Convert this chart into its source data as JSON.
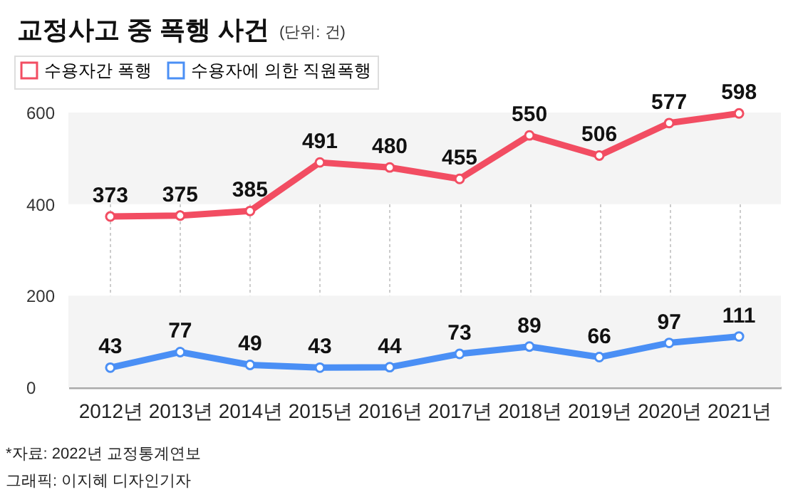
{
  "chart_data": {
    "type": "line",
    "title": "교정사고 중 폭행 사건",
    "subtitle": "(단위: 건)",
    "categories": [
      "2012년",
      "2013년",
      "2014년",
      "2015년",
      "2016년",
      "2017년",
      "2018년",
      "2019년",
      "2020년",
      "2021년"
    ],
    "series": [
      {
        "name": "수용자간 폭행",
        "color": "#f24d62",
        "values": [
          373,
          375,
          385,
          491,
          480,
          455,
          550,
          506,
          577,
          598
        ]
      },
      {
        "name": "수용자에 의한 직원폭행",
        "color": "#4a8ff5",
        "values": [
          43,
          77,
          49,
          43,
          44,
          73,
          89,
          66,
          97,
          111
        ]
      }
    ],
    "ylim": [
      0,
      600
    ],
    "yticks": [
      0,
      200,
      400,
      600
    ],
    "bands": [
      {
        "axis": "y",
        "from": 0,
        "to": 200,
        "color": "#f4f4f4"
      },
      {
        "axis": "y",
        "from": 400,
        "to": 600,
        "color": "#f4f4f4"
      }
    ],
    "grid": "x",
    "legend": "top left",
    "marker": "circle",
    "line_style": "solid",
    "data_labels": true,
    "annotations": [
      "*자료: 2022년 교정통계연보",
      "그래픽: 이지혜 디자인기자"
    ]
  }
}
